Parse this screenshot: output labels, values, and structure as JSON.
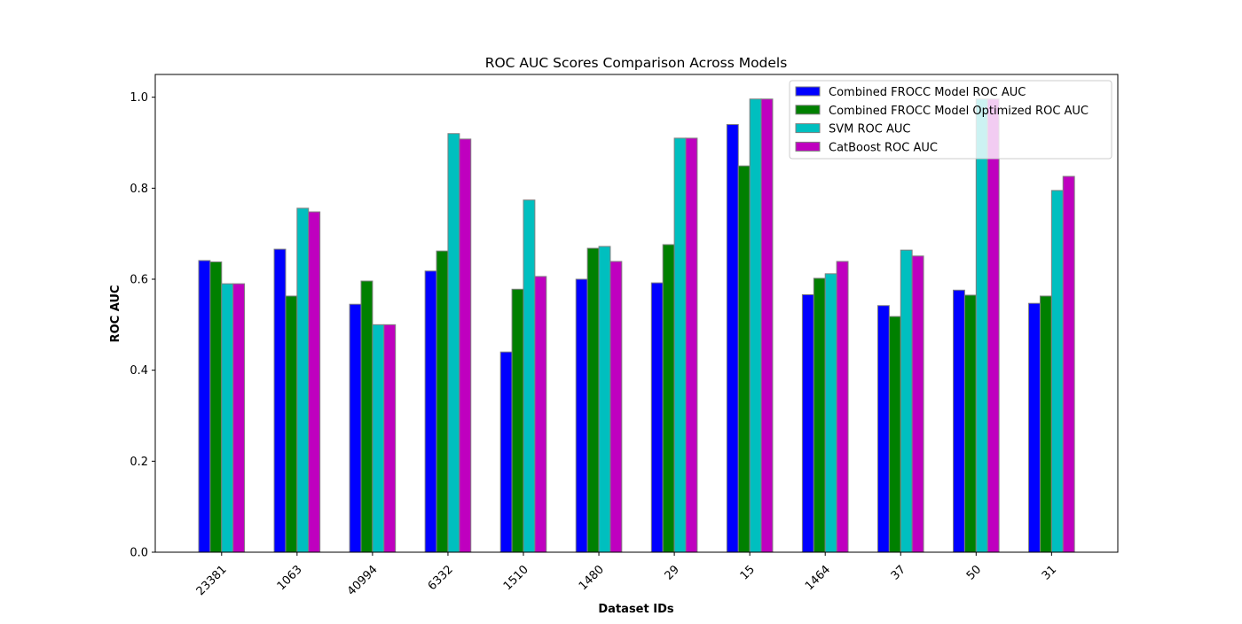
{
  "chart_data": {
    "type": "bar",
    "title": "ROC AUC Scores Comparison Across Models",
    "xlabel": "Dataset IDs",
    "ylabel": "ROC AUC",
    "ylim": [
      0,
      1.05
    ],
    "yticks": [
      "0.0",
      "0.2",
      "0.4",
      "0.6",
      "0.8",
      "1.0"
    ],
    "grid": false,
    "legend_position": "top-right",
    "categories": [
      "23381",
      "1063",
      "40994",
      "6332",
      "1510",
      "1480",
      "29",
      "15",
      "1464",
      "37",
      "50",
      "31"
    ],
    "series": [
      {
        "name": "Combined FROCC Model ROC AUC",
        "color": "#0000ff",
        "values": [
          0.641,
          0.666,
          0.545,
          0.618,
          0.44,
          0.6,
          0.592,
          0.94,
          0.566,
          0.542,
          0.576,
          0.547
        ]
      },
      {
        "name": "Combined FROCC Model Optimized ROC AUC",
        "color": "#008000",
        "values": [
          0.638,
          0.563,
          0.596,
          0.662,
          0.578,
          0.668,
          0.676,
          0.849,
          0.602,
          0.518,
          0.565,
          0.563
        ]
      },
      {
        "name": "SVM ROC AUC",
        "color": "#00bfbf",
        "values": [
          0.59,
          0.756,
          0.5,
          0.92,
          0.774,
          0.672,
          0.91,
          0.996,
          0.612,
          0.664,
          0.996,
          0.795
        ]
      },
      {
        "name": "CatBoost ROC AUC",
        "color": "#bf00bf",
        "values": [
          0.59,
          0.748,
          0.5,
          0.908,
          0.606,
          0.639,
          0.91,
          0.996,
          0.639,
          0.651,
          0.996,
          0.826
        ]
      }
    ]
  }
}
